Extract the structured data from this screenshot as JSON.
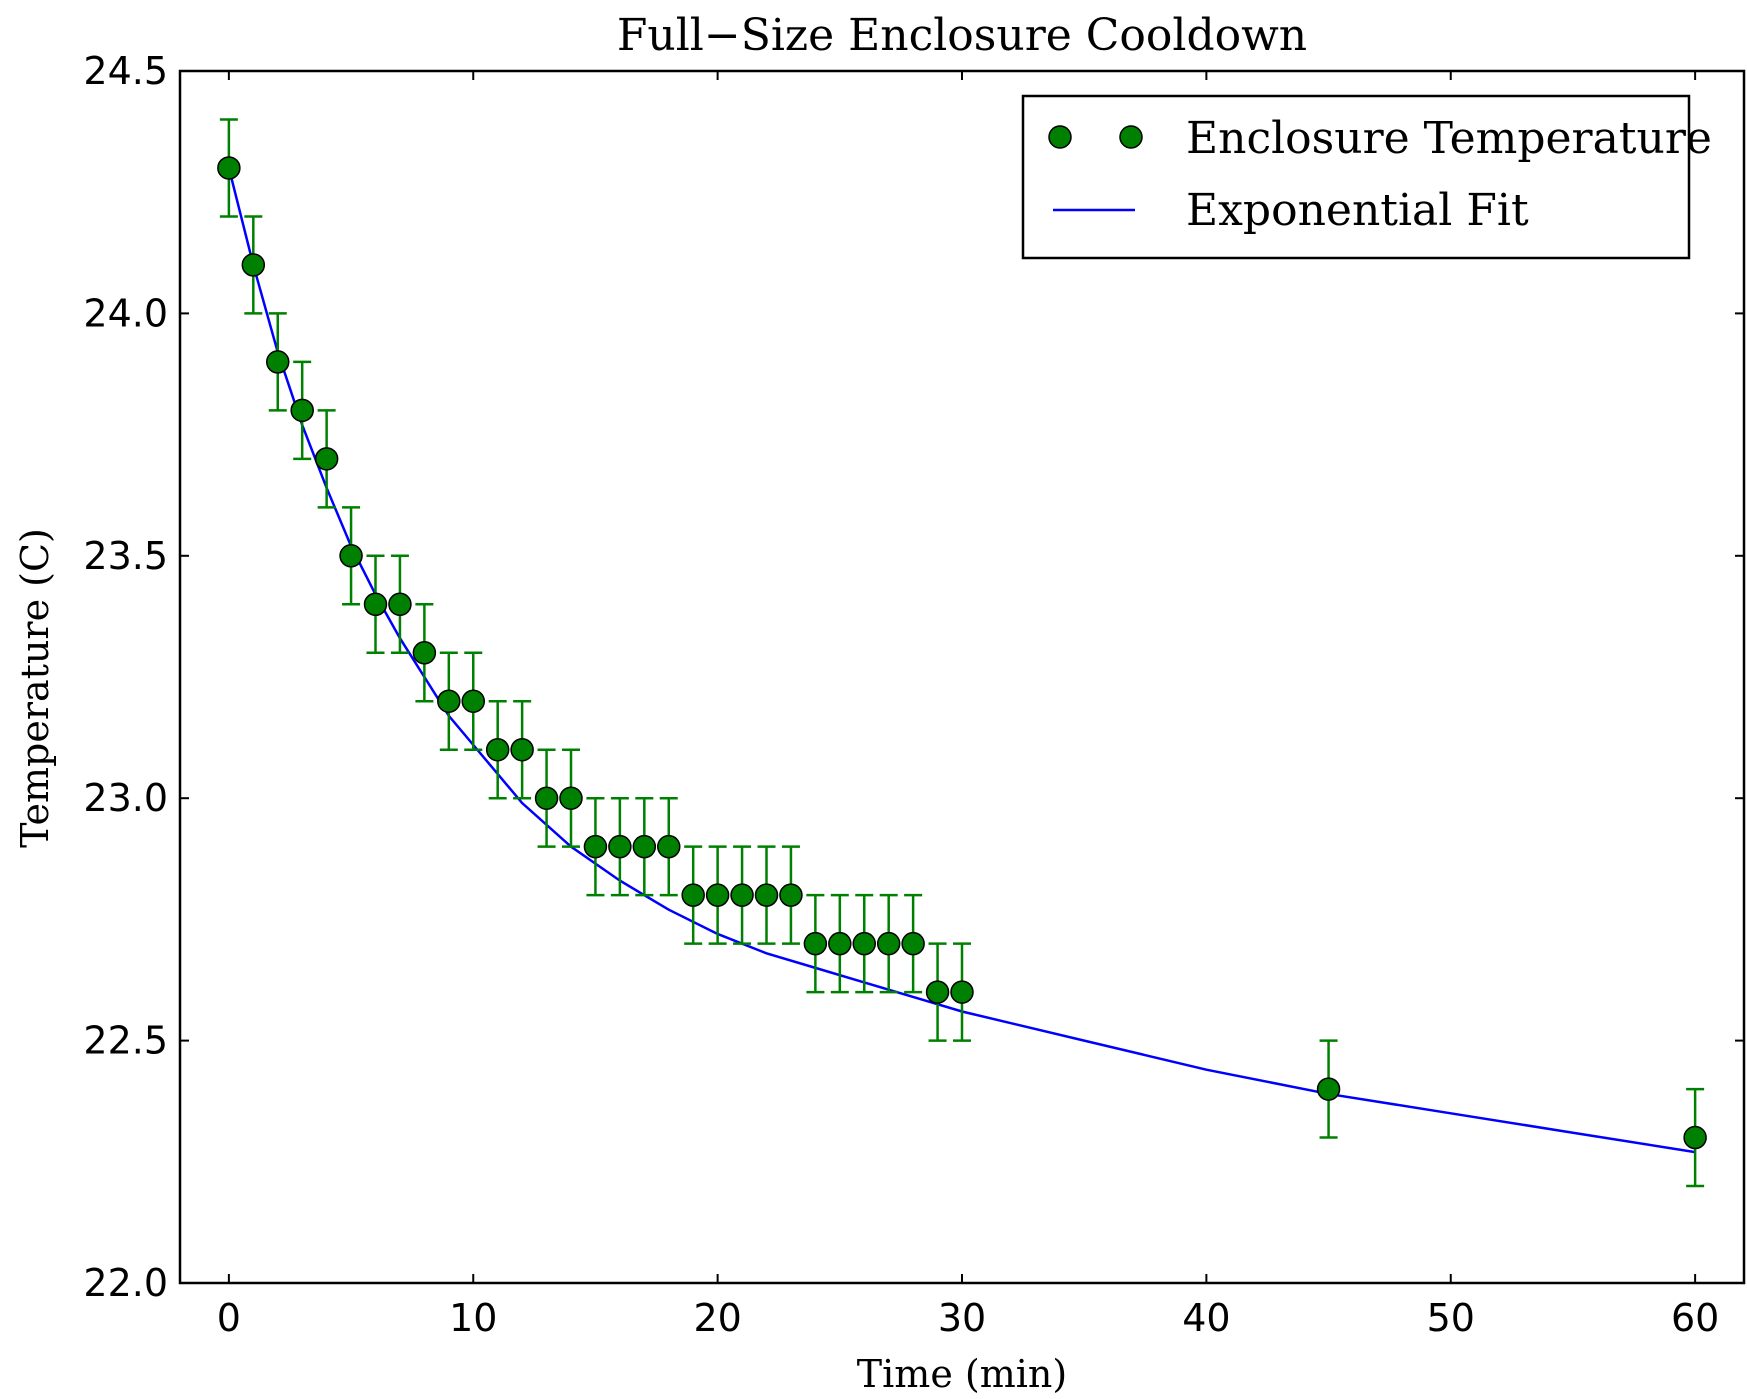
{
  "chart_data": {
    "type": "scatter",
    "title": "Full−Size Enclosure Cooldown",
    "xlabel": "Time (min)",
    "ylabel": "Temperature (C)",
    "xlim": [
      -2,
      62
    ],
    "ylim": [
      22.0,
      24.5
    ],
    "xticks": [
      0,
      10,
      20,
      30,
      40,
      50,
      60
    ],
    "yticks": [
      22.0,
      22.5,
      23.0,
      23.5,
      24.0,
      24.5
    ],
    "xtick_labels": [
      "0",
      "10",
      "20",
      "30",
      "40",
      "50",
      "60"
    ],
    "ytick_labels": [
      "22.0",
      "22.5",
      "23.0",
      "23.5",
      "24.0",
      "24.5"
    ],
    "grid": false,
    "legend_position": "top-right",
    "series": [
      {
        "name": "Enclosure Temperature",
        "kind": "errorbar-points",
        "color": "#008000",
        "error": 0.1,
        "x": [
          0,
          1,
          2,
          3,
          4,
          5,
          6,
          7,
          8,
          9,
          10,
          11,
          12,
          13,
          14,
          15,
          16,
          17,
          18,
          19,
          20,
          21,
          22,
          23,
          24,
          25,
          26,
          27,
          28,
          29,
          30,
          45,
          60
        ],
        "y": [
          24.3,
          24.1,
          23.9,
          23.8,
          23.7,
          23.5,
          23.4,
          23.4,
          23.3,
          23.2,
          23.2,
          23.1,
          23.1,
          23.0,
          23.0,
          22.9,
          22.9,
          22.9,
          22.9,
          22.8,
          22.8,
          22.8,
          22.8,
          22.8,
          22.7,
          22.7,
          22.7,
          22.7,
          22.7,
          22.6,
          22.6,
          22.4,
          22.3
        ]
      },
      {
        "name": "Exponential Fit",
        "kind": "line",
        "color": "#0000ff",
        "x": [
          0,
          1,
          2,
          3,
          4,
          5,
          6,
          7,
          8,
          9,
          10,
          12,
          14,
          16,
          18,
          20,
          22,
          24,
          26,
          28,
          30,
          35,
          40,
          45,
          50,
          55,
          60
        ],
        "y": [
          24.3,
          24.1,
          23.92,
          23.77,
          23.64,
          23.52,
          23.42,
          23.33,
          23.25,
          23.17,
          23.11,
          22.99,
          22.9,
          22.83,
          22.77,
          22.72,
          22.68,
          22.65,
          22.62,
          22.59,
          22.56,
          22.5,
          22.44,
          22.39,
          22.35,
          22.31,
          22.27
        ]
      }
    ]
  }
}
